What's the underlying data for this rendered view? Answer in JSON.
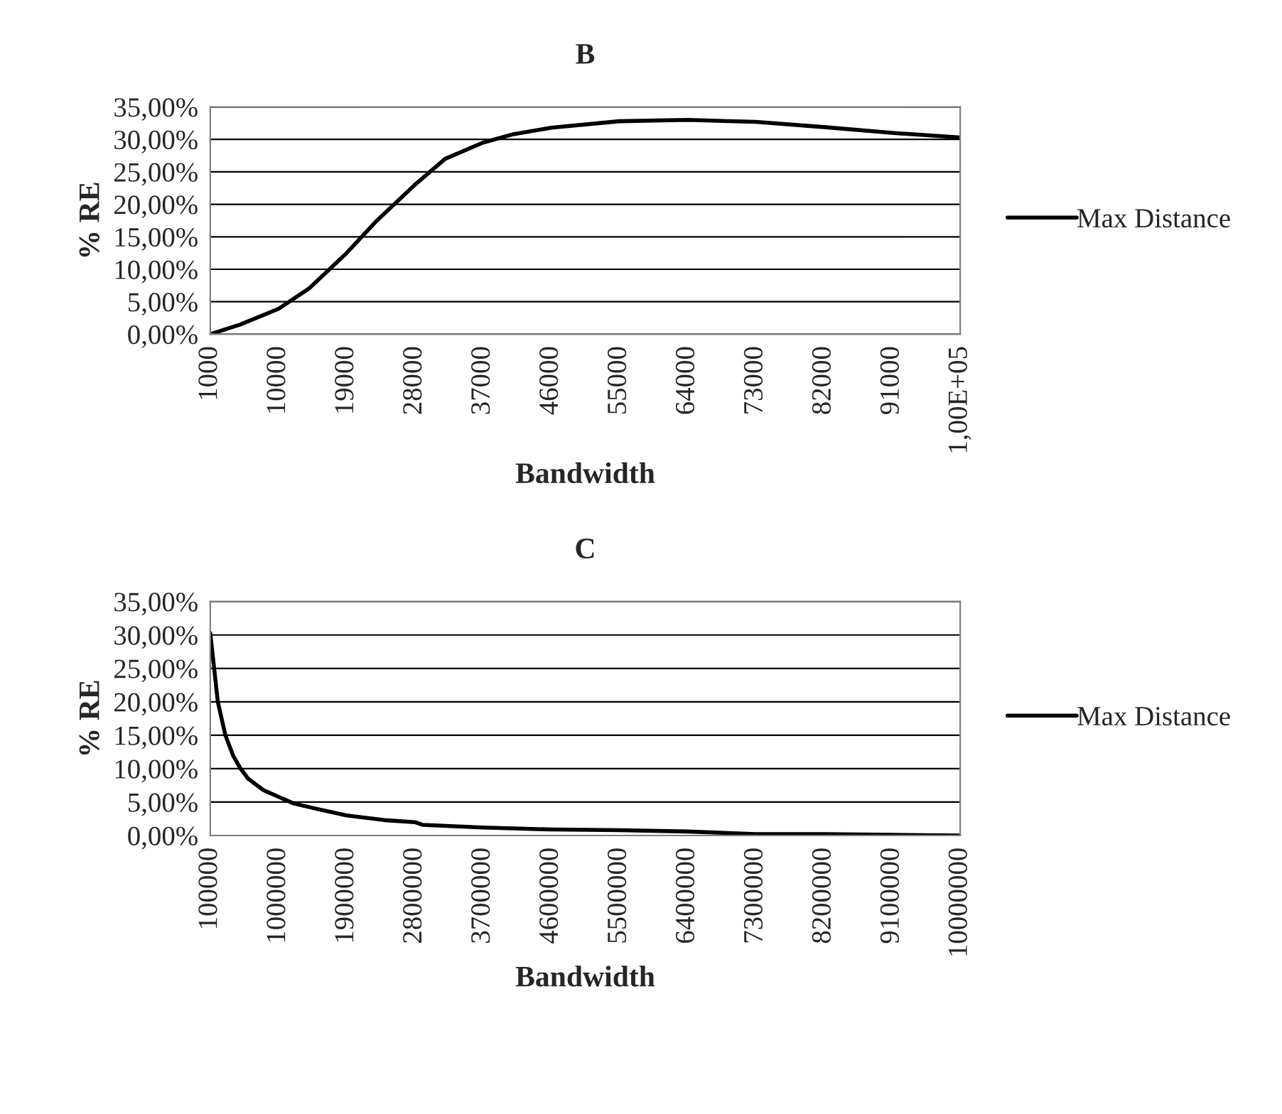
{
  "chart_data": [
    {
      "type": "line",
      "title": "B",
      "xlabel": "Bandwidth",
      "ylabel": "% RE",
      "x": [
        1000,
        5000,
        10000,
        14000,
        19000,
        23000,
        28000,
        32000,
        37000,
        41000,
        46000,
        55000,
        64000,
        73000,
        82000,
        91000,
        100000
      ],
      "series": [
        {
          "name": "Max Distance",
          "color": "#000000",
          "values": [
            0,
            1.5,
            3.9,
            7,
            12.5,
            17.5,
            23,
            27,
            29.5,
            30.8,
            31.8,
            32.8,
            33,
            32.7,
            31.9,
            31,
            30.3
          ]
        }
      ],
      "xlim": [
        1000,
        100000
      ],
      "xticks": [
        1000,
        10000,
        19000,
        28000,
        37000,
        46000,
        55000,
        64000,
        73000,
        82000,
        91000,
        {
          "value": 100000,
          "label": "1,00E+05"
        }
      ],
      "ylim": [
        0,
        35
      ],
      "yticks": [
        {
          "value": 0,
          "label": "0,00%"
        },
        {
          "value": 5,
          "label": "5,00%"
        },
        {
          "value": 10,
          "label": "10,00%"
        },
        {
          "value": 15,
          "label": "15,00%"
        },
        {
          "value": 20,
          "label": "20,00%"
        },
        {
          "value": 25,
          "label": "25,00%"
        },
        {
          "value": 30,
          "label": "30,00%"
        },
        {
          "value": 35,
          "label": "35,00%"
        }
      ],
      "grid": "y",
      "legend": "right",
      "line_style": "solid",
      "marker": "none"
    },
    {
      "type": "line",
      "title": "C",
      "xlabel": "Bandwidth",
      "ylabel": "% RE",
      "x": [
        100000,
        200000,
        300000,
        400000,
        500000,
        600000,
        800000,
        1000000,
        1200000,
        1500000,
        1900000,
        2400000,
        2800000,
        2900000,
        3700000,
        4600000,
        5500000,
        6400000,
        7300000,
        8200000,
        9100000,
        10000000
      ],
      "series": [
        {
          "name": "Max Distance",
          "color": "#000000",
          "values": [
            30.3,
            20,
            15,
            12,
            10,
            8.5,
            6.8,
            5.8,
            4.8,
            4,
            3,
            2.3,
            2,
            1.6,
            1.2,
            0.9,
            0.8,
            0.6,
            0.2,
            0.2,
            0.1,
            0
          ]
        }
      ],
      "xlim": [
        100000,
        10000000
      ],
      "xticks": [
        100000,
        1000000,
        1900000,
        2800000,
        3700000,
        4600000,
        5500000,
        6400000,
        7300000,
        8200000,
        9100000,
        10000000
      ],
      "ylim": [
        0,
        35
      ],
      "yticks": [
        {
          "value": 0,
          "label": "0,00%"
        },
        {
          "value": 5,
          "label": "5,00%"
        },
        {
          "value": 10,
          "label": "10,00%"
        },
        {
          "value": 15,
          "label": "15,00%"
        },
        {
          "value": 20,
          "label": "20,00%"
        },
        {
          "value": 25,
          "label": "25,00%"
        },
        {
          "value": 30,
          "label": "30,00%"
        },
        {
          "value": 35,
          "label": "35,00%"
        }
      ],
      "grid": "y",
      "legend": "right",
      "line_style": "solid",
      "marker": "none"
    }
  ]
}
